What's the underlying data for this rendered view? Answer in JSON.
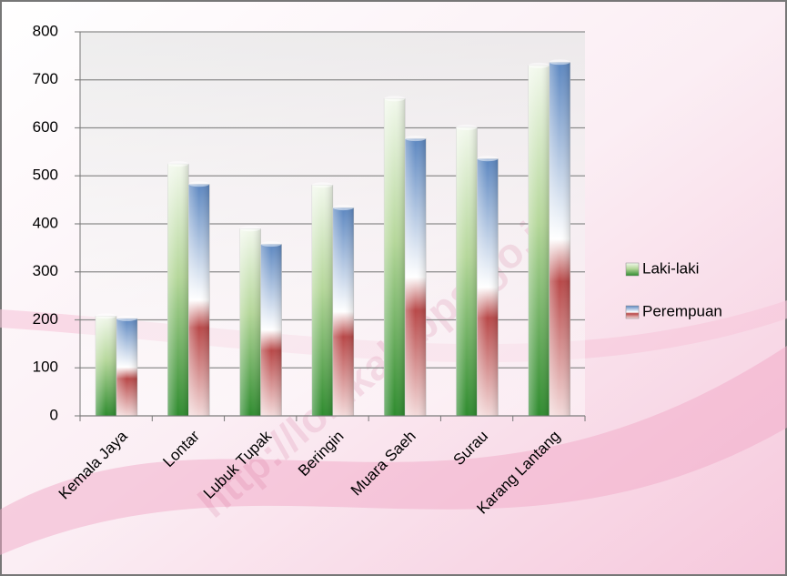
{
  "chart_data": {
    "type": "bar",
    "categories": [
      "Kemala Jaya",
      "Lontar",
      "Lubuk Tupak",
      "Beringin",
      "Muara Saeh",
      "Surau",
      "Karang Lantang"
    ],
    "series": [
      {
        "name": "Laki-laki",
        "color": "#2e8b2e",
        "values": [
          208,
          525,
          390,
          481,
          661,
          601,
          730
        ]
      },
      {
        "name": "Perempuan",
        "color": "#5b86c0",
        "values": [
          203,
          483,
          358,
          434,
          578,
          536,
          737
        ]
      }
    ],
    "ylim": [
      0,
      800
    ],
    "yticks": [
      0,
      100,
      200,
      300,
      400,
      500,
      600,
      700,
      800
    ],
    "grid": true,
    "legend": "right",
    "watermark": "http://lokikab.bps.go.id"
  }
}
